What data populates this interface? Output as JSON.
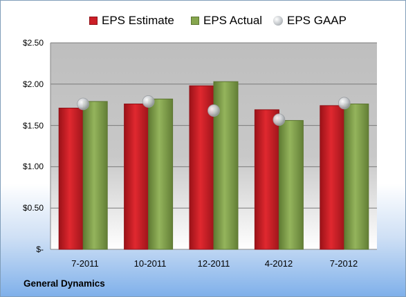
{
  "chart_data": {
    "type": "bar",
    "categories": [
      "7-2011",
      "10-2011",
      "12-2011",
      "4-2012",
      "7-2012"
    ],
    "series": [
      {
        "name": "EPS Estimate",
        "type": "bar",
        "color": "#cc1f27",
        "values": [
          1.71,
          1.76,
          1.98,
          1.69,
          1.74
        ]
      },
      {
        "name": "EPS Actual",
        "type": "bar",
        "color": "#86a64e",
        "values": [
          1.79,
          1.82,
          2.03,
          1.56,
          1.76
        ]
      },
      {
        "name": "EPS GAAP",
        "type": "marker",
        "color": "#c4c8cc",
        "values": [
          1.76,
          1.79,
          1.68,
          1.57,
          1.77
        ]
      }
    ],
    "y_tick_labels": [
      "$-",
      "$0.50",
      "$1.00",
      "$1.50",
      "$2.00",
      "$2.50"
    ],
    "ylim": [
      0,
      2.5
    ],
    "ytick_step": 0.5,
    "grid": true,
    "legend_position": "top"
  },
  "footer": {
    "company": "General Dynamics"
  }
}
